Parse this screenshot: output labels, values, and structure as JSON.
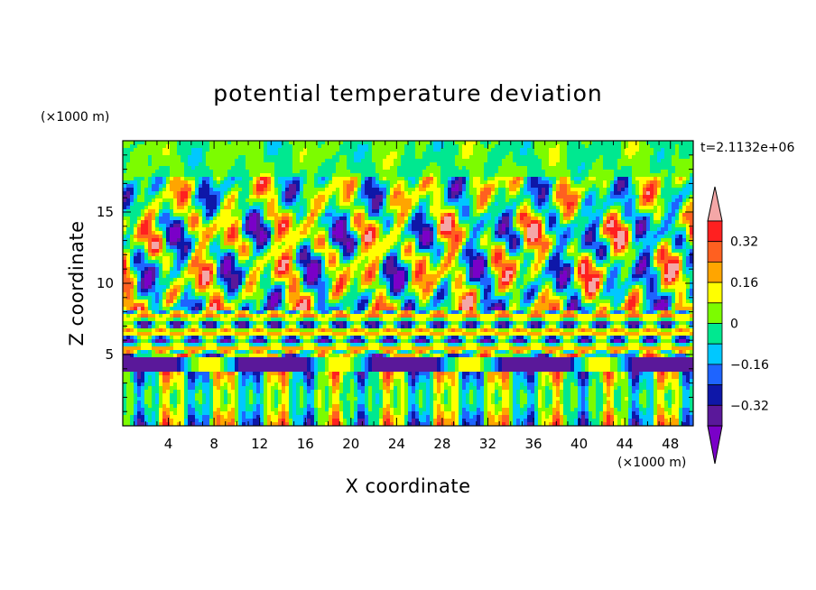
{
  "chart_data": {
    "type": "heatmap",
    "title": "potential temperature deviation",
    "xlabel": "X coordinate",
    "ylabel": "Z coordinate",
    "x_unit": "(×1000 m)",
    "y_unit": "(×1000 m)",
    "time_label": "t=2.1132e+06",
    "xlim": [
      0,
      50
    ],
    "ylim": [
      0,
      20
    ],
    "x_ticks": [
      4,
      8,
      12,
      16,
      20,
      24,
      28,
      32,
      36,
      40,
      44,
      48
    ],
    "y_ticks": [
      5,
      10,
      15
    ],
    "colorbar": {
      "levels": [
        -0.4,
        -0.32,
        -0.24,
        -0.16,
        -0.08,
        0,
        0.08,
        0.16,
        0.24,
        0.32,
        0.4
      ],
      "labeled_levels": [
        0.32,
        0.16,
        0,
        -0.16,
        -0.32
      ],
      "labels": [
        "0.32",
        "0.16",
        "0",
        "−0.16",
        "−0.32"
      ],
      "colors": [
        "#7a00c8",
        "#5a189a",
        "#0e17a8",
        "#1e64ff",
        "#00c8ff",
        "#00e890",
        "#7cfc00",
        "#ffff00",
        "#ffa500",
        "#ff6020",
        "#ff2020",
        "#f4a7a7"
      ],
      "extend": "both"
    }
  }
}
